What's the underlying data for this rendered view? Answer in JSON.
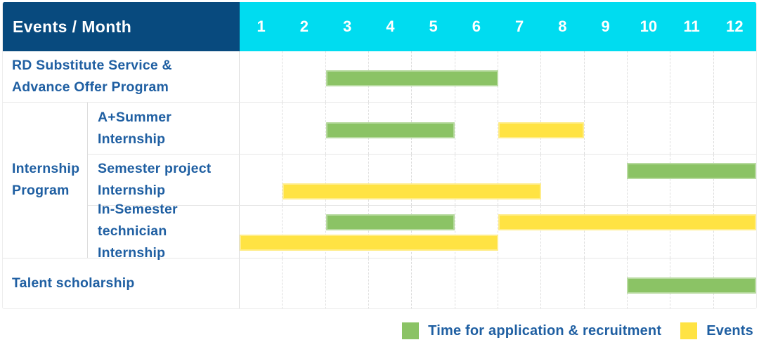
{
  "header": {
    "title": "Events / Month",
    "months": [
      "1",
      "2",
      "3",
      "4",
      "5",
      "6",
      "7",
      "8",
      "9",
      "10",
      "11",
      "12"
    ]
  },
  "colors": {
    "header_bg": "#084a7e",
    "months_bg": "#00dcf0",
    "green": "#8bc365",
    "yellow": "#ffe343",
    "label_text": "#1f5fa2"
  },
  "legend": {
    "items": [
      {
        "color": "green",
        "label": "Time for application & recruitment"
      },
      {
        "color": "yellow",
        "label": "Events"
      }
    ]
  },
  "chart_data": {
    "type": "gantt",
    "x_unit": "month",
    "x_range": [
      1,
      12
    ],
    "grid": "dashed-vertical",
    "legend_position": "bottom-right",
    "categories": {
      "green": "Time for application & recruitment",
      "yellow": "Events"
    },
    "group_label": "Internship Program",
    "rows": [
      {
        "label": "RD Substitute Service & Advance Offer Program",
        "group": null,
        "bars": [
          {
            "category": "Time for application & recruitment",
            "color": "green",
            "start_month": 3,
            "end_month": 6,
            "line": "center"
          }
        ]
      },
      {
        "label": "A+Summer Internship",
        "group": "Internship Program",
        "bars": [
          {
            "category": "Time for application & recruitment",
            "color": "green",
            "start_month": 3,
            "end_month": 5,
            "line": "center"
          },
          {
            "category": "Events",
            "color": "yellow",
            "start_month": 7,
            "end_month": 8,
            "line": "center"
          }
        ]
      },
      {
        "label": "Semester project Internship",
        "group": "Internship Program",
        "bars": [
          {
            "category": "Time for application & recruitment",
            "color": "green",
            "start_month": 10,
            "end_month": 12,
            "line": "top"
          },
          {
            "category": "Events",
            "color": "yellow",
            "start_month": 2,
            "end_month": 7,
            "line": "bottom"
          }
        ]
      },
      {
        "label": "In-Semester technician Internship",
        "group": "Internship Program",
        "bars": [
          {
            "category": "Time for application & recruitment",
            "color": "green",
            "start_month": 3,
            "end_month": 5,
            "line": "top"
          },
          {
            "category": "Events",
            "color": "yellow",
            "start_month": 7,
            "end_month": 12,
            "line": "top"
          },
          {
            "category": "Events",
            "color": "yellow",
            "start_month": 1,
            "end_month": 6,
            "line": "bottom"
          }
        ]
      },
      {
        "label": "Talent scholarship",
        "group": null,
        "bars": [
          {
            "category": "Time for application & recruitment",
            "color": "green",
            "start_month": 10,
            "end_month": 12,
            "line": "center"
          }
        ]
      }
    ]
  }
}
